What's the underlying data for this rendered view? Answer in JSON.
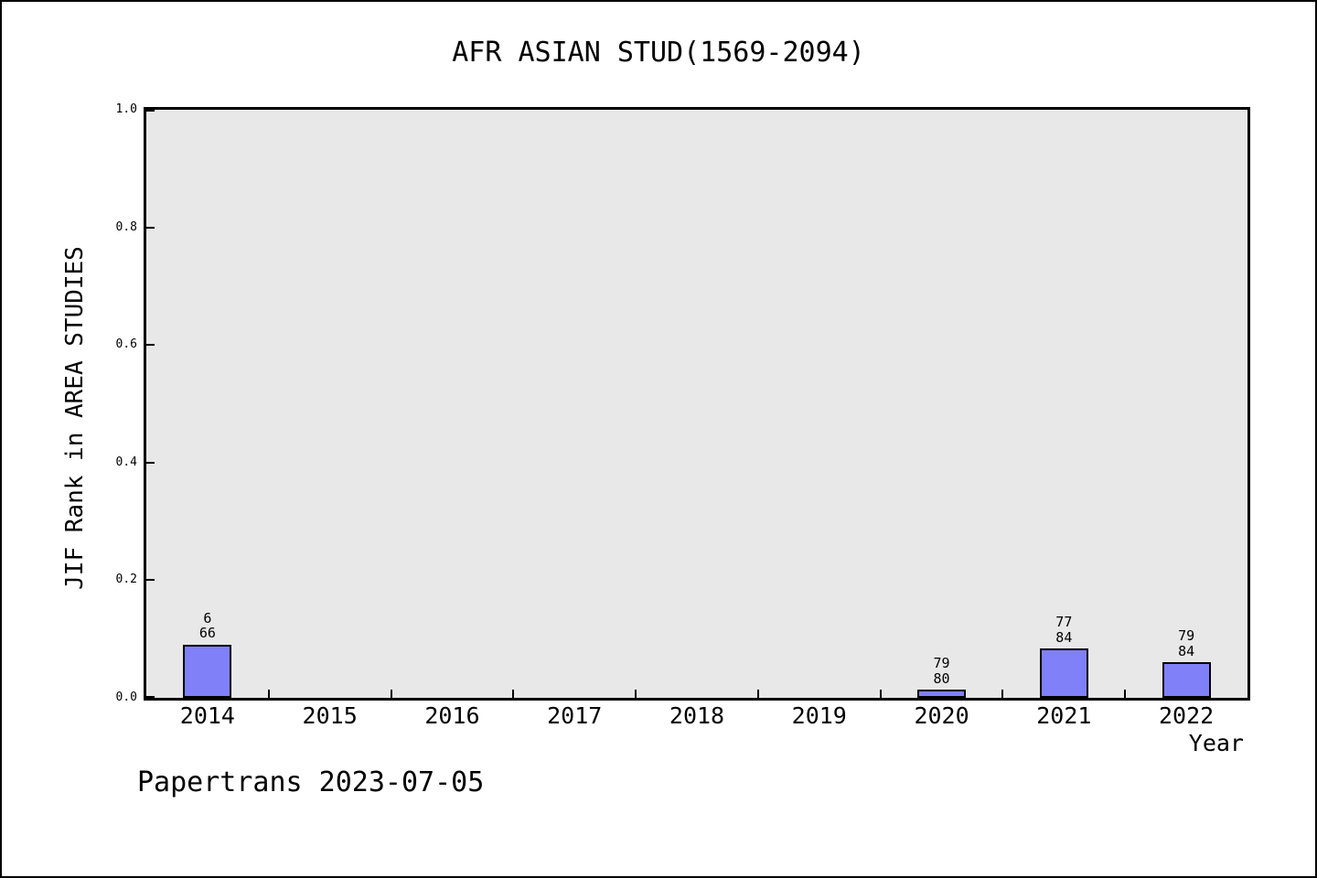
{
  "chart_data": {
    "type": "bar",
    "title": "AFR ASIAN STUD(1569-2094)",
    "xlabel": "Year",
    "ylabel": "JIF Rank in AREA STUDIES",
    "annotation": "Papertrans 2023-07-05",
    "categories": [
      "2014",
      "2015",
      "2016",
      "2017",
      "2018",
      "2019",
      "2020",
      "2021",
      "2022"
    ],
    "values": [
      0.091,
      0,
      0,
      0,
      0,
      0,
      0.014,
      0.084,
      0.06
    ],
    "bar_labels": [
      [
        "6",
        "66"
      ],
      null,
      null,
      null,
      null,
      null,
      [
        "79",
        "80"
      ],
      [
        "77",
        "84"
      ],
      [
        "79",
        "84"
      ]
    ],
    "ylim": [
      0,
      1
    ],
    "yticks": [
      "0.0",
      "0.2",
      "0.4",
      "0.6",
      "0.8",
      "1.0"
    ],
    "grid": "off",
    "legend": "none",
    "bar_color": "#8080f8",
    "bar_edge_color": "#000000",
    "plot_background": "#e8e8e8"
  }
}
